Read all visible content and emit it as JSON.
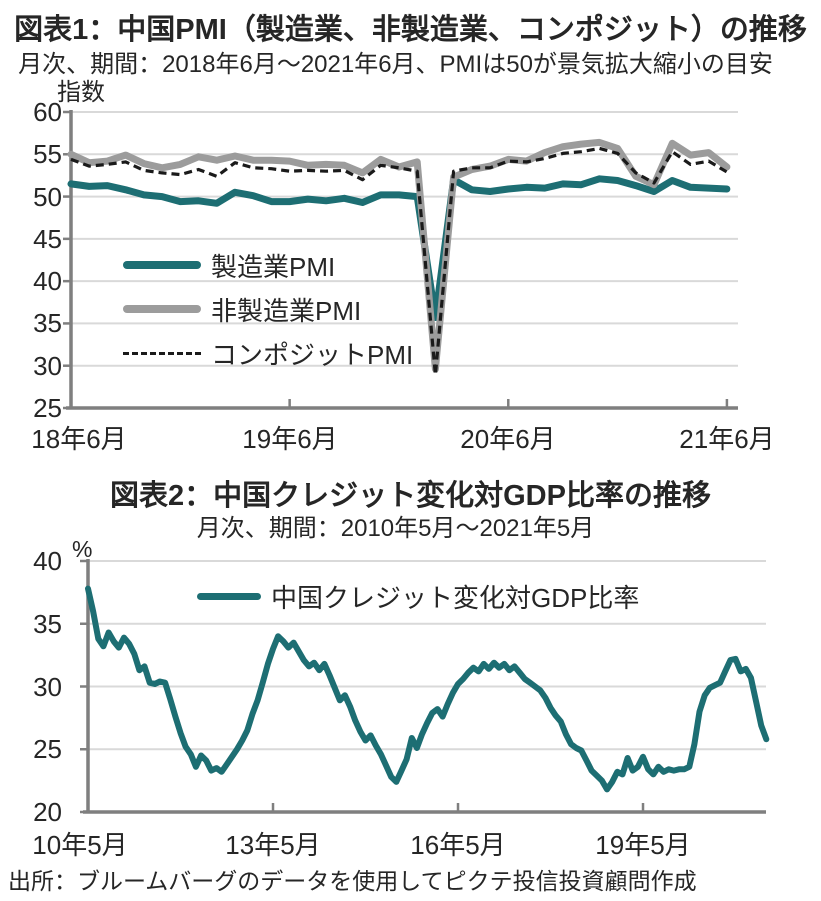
{
  "source": "出所：ブルームバーグのデータを使用してピクテ投信投資顧問作成",
  "colors": {
    "teal": "#1d6e73",
    "gray_series": "#9c9c9c",
    "black_series": "#1a1a1a",
    "gridline": "#d9d9d9",
    "axis": "#7f7f7f",
    "text": "#262626"
  },
  "chart_data": [
    {
      "type": "line",
      "title": "図表1：中国PMI（製造業、非製造業、コンポジット）の推移",
      "subtitle": "月次、期間：2018年6月～2021年6月、PMIは50が景気拡大縮小の目安",
      "ylabel": "指数",
      "ylim": [
        25,
        60
      ],
      "ytick_labels": [
        "60",
        "55",
        "50",
        "45",
        "40",
        "35",
        "30",
        "25"
      ],
      "grid": true,
      "legend_position": "inside-left",
      "x_start": "2018-06",
      "x_end": "2021-06",
      "x_frequency": "monthly",
      "xtick_labels": [
        "18年6月",
        "19年6月",
        "20年6月",
        "21年6月"
      ],
      "xtick_month_index": [
        0,
        12,
        24,
        36
      ],
      "series": [
        {
          "name": "製造業PMI",
          "color": "#1d6e73",
          "style": "solid",
          "values": [
            51.5,
            51.2,
            51.3,
            50.8,
            50.2,
            50.0,
            49.4,
            49.5,
            49.2,
            50.5,
            50.1,
            49.4,
            49.4,
            49.7,
            49.5,
            49.8,
            49.3,
            50.2,
            50.2,
            50.0,
            35.7,
            52.0,
            50.8,
            50.6,
            50.9,
            51.1,
            51.0,
            51.5,
            51.4,
            52.1,
            51.9,
            51.3,
            50.6,
            51.9,
            51.1,
            51.0,
            50.9
          ]
        },
        {
          "name": "非製造業PMI",
          "color": "#9c9c9c",
          "style": "solid",
          "values": [
            55.0,
            54.0,
            54.2,
            54.9,
            53.9,
            53.4,
            53.8,
            54.7,
            54.3,
            54.8,
            54.3,
            54.3,
            54.2,
            53.7,
            53.8,
            53.7,
            52.8,
            54.4,
            53.5,
            54.1,
            29.6,
            52.3,
            53.2,
            53.6,
            54.4,
            54.2,
            55.2,
            55.9,
            56.2,
            56.4,
            55.7,
            52.4,
            51.4,
            56.3,
            54.9,
            55.2,
            53.5
          ]
        },
        {
          "name": "コンポジットPMI",
          "color": "#1a1a1a",
          "style": "dashed",
          "values": [
            54.4,
            53.6,
            53.8,
            54.1,
            53.1,
            52.8,
            52.6,
            53.2,
            52.4,
            54.0,
            53.4,
            53.3,
            53.0,
            53.1,
            53.0,
            53.1,
            52.0,
            53.7,
            53.4,
            53.0,
            28.9,
            53.0,
            53.4,
            53.4,
            54.2,
            54.1,
            54.5,
            55.1,
            55.3,
            55.7,
            55.1,
            52.8,
            51.6,
            55.3,
            53.8,
            54.2,
            52.9
          ]
        }
      ]
    },
    {
      "type": "line",
      "title": "図表2：中国クレジット変化対GDP比率の推移",
      "subtitle": "月次、期間：2010年5月～2021年5月",
      "ylabel": "%",
      "ylim": [
        20,
        40
      ],
      "ytick_labels": [
        "40",
        "35",
        "30",
        "25",
        "20"
      ],
      "grid": true,
      "legend_position": "inside-top",
      "x_start": "2010-05",
      "x_end": "2021-05",
      "x_frequency": "monthly",
      "xtick_labels": [
        "10年5月",
        "13年5月",
        "16年5月",
        "19年5月"
      ],
      "xtick_month_index": [
        0,
        36,
        72,
        108
      ],
      "series": [
        {
          "name": "中国クレジット変化対GDP比率",
          "color": "#1d6e73",
          "style": "solid",
          "values": [
            37.8,
            36.0,
            33.8,
            33.2,
            34.3,
            33.6,
            33.1,
            33.9,
            33.4,
            32.6,
            31.3,
            31.6,
            30.3,
            30.2,
            30.4,
            30.3,
            29.0,
            27.6,
            26.3,
            25.2,
            24.6,
            23.6,
            24.5,
            24.1,
            23.3,
            23.5,
            23.2,
            23.8,
            24.4,
            25.0,
            25.7,
            26.5,
            27.8,
            28.9,
            30.3,
            31.8,
            33.0,
            34.0,
            33.6,
            33.1,
            33.5,
            32.8,
            32.1,
            31.6,
            31.9,
            31.3,
            31.8,
            30.9,
            29.9,
            28.9,
            29.3,
            28.4,
            27.3,
            26.4,
            25.7,
            26.1,
            25.3,
            24.6,
            23.7,
            22.8,
            22.4,
            23.3,
            24.2,
            25.9,
            25.1,
            26.2,
            27.1,
            27.9,
            28.2,
            27.6,
            28.6,
            29.5,
            30.2,
            30.6,
            31.1,
            31.5,
            31.2,
            31.8,
            31.4,
            31.9,
            31.5,
            31.8,
            31.3,
            31.6,
            31.1,
            30.6,
            30.3,
            30.0,
            29.7,
            29.1,
            28.3,
            27.7,
            27.2,
            26.2,
            25.4,
            25.1,
            24.9,
            24.1,
            23.3,
            22.9,
            22.5,
            21.8,
            22.4,
            23.2,
            23.0,
            24.3,
            23.3,
            23.6,
            24.4,
            23.4,
            23.0,
            23.6,
            23.2,
            23.4,
            23.3,
            23.4,
            23.4,
            23.6,
            25.4,
            28.0,
            29.3,
            29.9,
            30.1,
            30.3,
            31.2,
            32.1,
            32.2,
            31.2,
            31.4,
            30.7,
            28.8,
            26.9,
            25.8
          ]
        }
      ]
    }
  ]
}
